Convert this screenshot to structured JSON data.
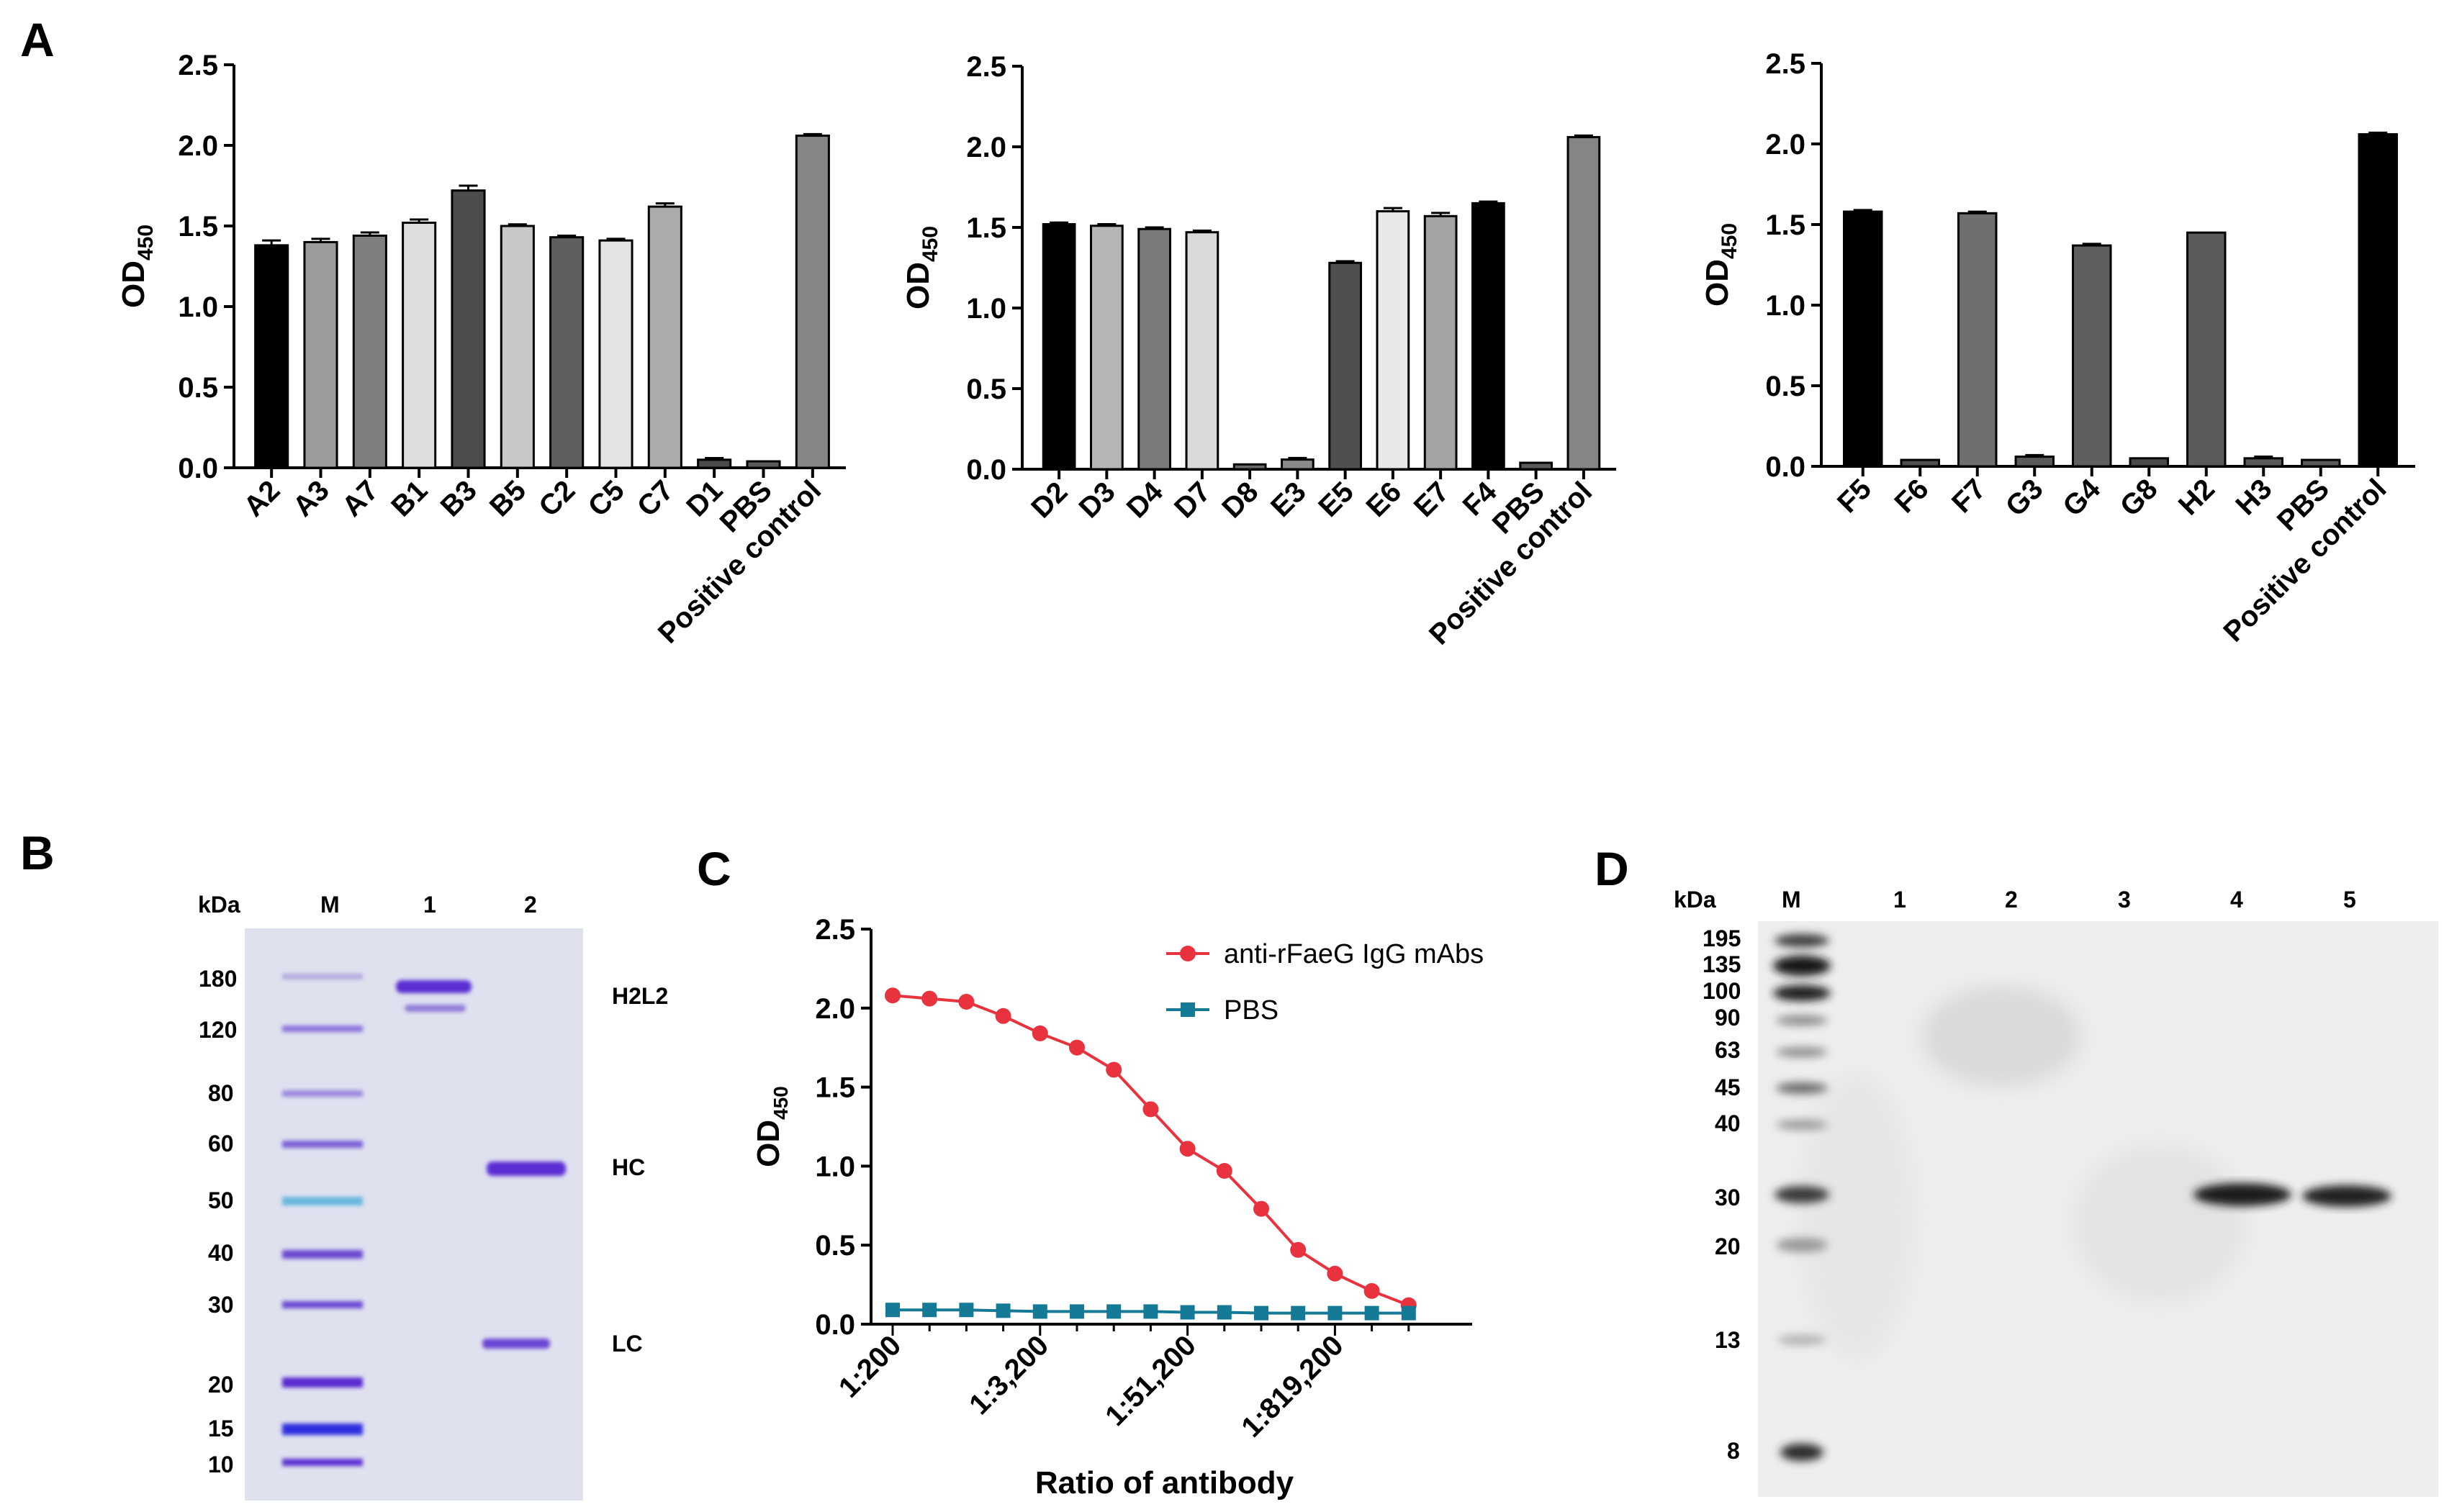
{
  "panels": {
    "a": "A",
    "b": "B",
    "c": "C",
    "d": "D"
  },
  "bar_panels": [
    {
      "ylabel_main": "OD",
      "ylabel_sub": "450",
      "ylim": [
        0,
        2.5
      ],
      "ticks": [
        "0.0",
        "0.5",
        "1.0",
        "1.5",
        "2.0",
        "2.5"
      ],
      "categories": [
        "A2",
        "A3",
        "A7",
        "B1",
        "B3",
        "B5",
        "C2",
        "C5",
        "C7",
        "D1",
        "PBS",
        "Positive control"
      ],
      "values": [
        1.38,
        1.4,
        1.44,
        1.52,
        1.72,
        1.5,
        1.43,
        1.41,
        1.62,
        0.05,
        0.04,
        2.06
      ],
      "errors": [
        0.03,
        0.02,
        0.02,
        0.02,
        0.03,
        0.01,
        0.01,
        0.01,
        0.02,
        0.01,
        0.0,
        0.01
      ],
      "colors": [
        "#000000",
        "#9b9b9b",
        "#7f7f7f",
        "#dedede",
        "#4d4d4d",
        "#c8c8c8",
        "#5f5f5f",
        "#e4e4e4",
        "#ababab",
        "#4a4a4a",
        "#5a5a5a",
        "#858585"
      ]
    },
    {
      "ylabel_main": "OD",
      "ylabel_sub": "450",
      "ylim": [
        0,
        2.5
      ],
      "ticks": [
        "0.0",
        "0.5",
        "1.0",
        "1.5",
        "2.0",
        "2.5"
      ],
      "categories": [
        "D2",
        "D3",
        "D4",
        "D7",
        "D8",
        "E3",
        "E5",
        "E6",
        "E7",
        "F4",
        "PBS",
        "Positive control"
      ],
      "values": [
        1.52,
        1.51,
        1.49,
        1.47,
        0.03,
        0.06,
        1.28,
        1.6,
        1.57,
        1.65,
        0.04,
        2.06
      ],
      "errors": [
        0.01,
        0.01,
        0.01,
        0.01,
        0.0,
        0.01,
        0.01,
        0.02,
        0.02,
        0.01,
        0.0,
        0.01
      ],
      "colors": [
        "#000000",
        "#b5b5b5",
        "#7a7a7a",
        "#dadada",
        "#6a6a6a",
        "#8a8a8a",
        "#4f4f4f",
        "#e8e8e8",
        "#a3a3a3",
        "#000000",
        "#5a5a5a",
        "#858585"
      ]
    },
    {
      "ylabel_main": "OD",
      "ylabel_sub": "450",
      "ylim": [
        0,
        2.5
      ],
      "ticks": [
        "0.0",
        "0.5",
        "1.0",
        "1.5",
        "2.0",
        "2.5"
      ],
      "categories": [
        "F5",
        "F6",
        "F7",
        "G3",
        "G4",
        "G8",
        "H2",
        "H3",
        "PBS",
        "Positive control"
      ],
      "values": [
        1.58,
        0.04,
        1.57,
        0.06,
        1.37,
        0.05,
        1.45,
        0.05,
        0.04,
        2.06
      ],
      "errors": [
        0.01,
        0.0,
        0.01,
        0.01,
        0.01,
        0.0,
        0.0,
        0.01,
        0.0,
        0.01
      ],
      "colors": [
        "#000000",
        "#4d4d4d",
        "#6f6f6f",
        "#5a5a5a",
        "#5f5f5f",
        "#4a4a4a",
        "#5a5a5a",
        "#5a5a5a",
        "#5a5a5a",
        "#000000"
      ]
    }
  ],
  "gel_b": {
    "kda": "kDa",
    "lanes": [
      "M",
      "1",
      "2"
    ],
    "markers": [
      "180",
      "120",
      "80",
      "60",
      "50",
      "40",
      "30",
      "20",
      "15",
      "10"
    ],
    "bands": [
      "H2L2",
      "HC",
      "LC"
    ]
  },
  "chart_data": {
    "type": "line",
    "title": "",
    "xlabel": "Ratio of antibody",
    "ylabel_main": "OD",
    "ylabel_sub": "450",
    "ylim": [
      0,
      2.5
    ],
    "yticks": [
      "0.0",
      "0.5",
      "1.0",
      "1.5",
      "2.0",
      "2.5"
    ],
    "xticklabels": [
      "1:200",
      "1:3,200",
      "1:51,200",
      "1:819,200"
    ],
    "xtick_index": [
      0,
      4,
      8,
      12
    ],
    "n_points": 15,
    "series": [
      {
        "name": "anti-rFaeG IgG mAbs",
        "color": "#e8333f",
        "marker": "circle",
        "values": [
          2.08,
          2.06,
          2.04,
          1.95,
          1.84,
          1.75,
          1.61,
          1.36,
          1.11,
          0.97,
          0.73,
          0.47,
          0.32,
          0.21,
          0.12
        ]
      },
      {
        "name": "PBS",
        "color": "#157a96",
        "marker": "square",
        "values": [
          0.09,
          0.09,
          0.09,
          0.085,
          0.08,
          0.08,
          0.08,
          0.08,
          0.075,
          0.075,
          0.07,
          0.07,
          0.07,
          0.07,
          0.07
        ]
      }
    ],
    "legend": "top-right"
  },
  "blot_d": {
    "kda": "kDa",
    "lanes": [
      "M",
      "1",
      "2",
      "3",
      "4",
      "5"
    ],
    "markers": [
      "195",
      "135",
      "100",
      "90",
      "63",
      "45",
      "40",
      "30",
      "20",
      "13",
      "8"
    ]
  }
}
